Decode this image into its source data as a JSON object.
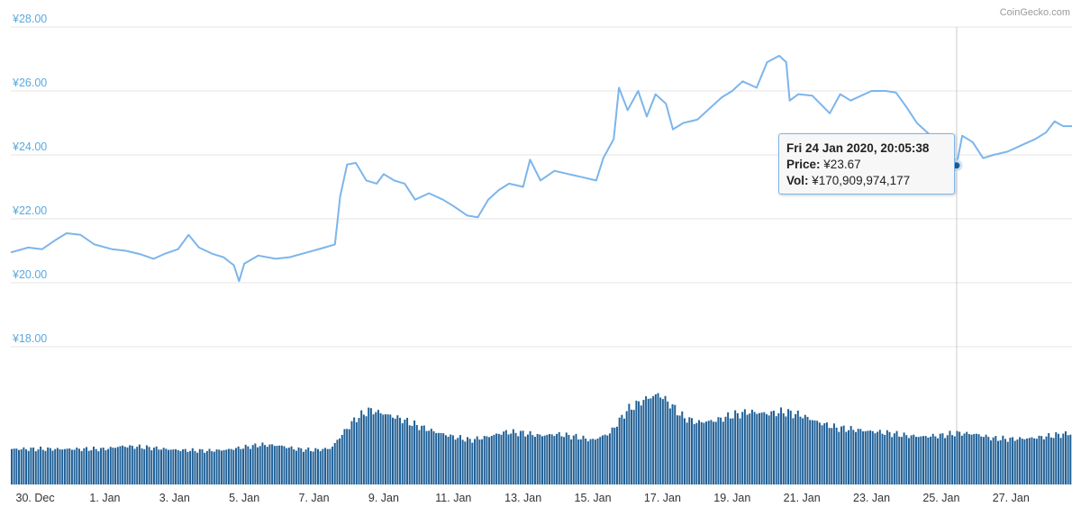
{
  "credit": "CoinGecko.com",
  "colors": {
    "line": "#7cb5ec",
    "bar": "#1e5f96",
    "axis_label": "#5aa9dd",
    "grid": "#e6e6e6",
    "crosshair": "#cccccc",
    "marker": "#1e5f96"
  },
  "tooltip": {
    "date": "Fri 24 Jan 2020, 20:05:38",
    "price_label": "Price:",
    "price_value": "¥23.67",
    "vol_label": "Vol:",
    "vol_value": "¥170,909,974,177"
  },
  "chart_data": {
    "type": "line",
    "title": "",
    "currency": "¥",
    "y_ticks": [
      "¥28.00",
      "¥26.00",
      "¥24.00",
      "¥22.00",
      "¥20.00",
      "¥18.00"
    ],
    "ylim": [
      18,
      28
    ],
    "x_ticks": [
      "30. Dec",
      "1. Jan",
      "3. Jan",
      "5. Jan",
      "7. Jan",
      "9. Jan",
      "11. Jan",
      "13. Jan",
      "15. Jan",
      "17. Jan",
      "19. Jan",
      "21. Jan",
      "23. Jan",
      "25. Jan",
      "27. Jan"
    ],
    "xlim_days": [
      -2.7,
      27.75
    ],
    "price_series": [
      [
        -2.7,
        20.95
      ],
      [
        -2.2,
        21.1
      ],
      [
        -1.8,
        21.05
      ],
      [
        -1.4,
        21.35
      ],
      [
        -1.1,
        21.55
      ],
      [
        -0.7,
        21.5
      ],
      [
        -0.3,
        21.2
      ],
      [
        0.2,
        21.05
      ],
      [
        0.6,
        21.0
      ],
      [
        1.0,
        20.9
      ],
      [
        1.4,
        20.75
      ],
      [
        1.7,
        20.9
      ],
      [
        2.1,
        21.05
      ],
      [
        2.4,
        21.5
      ],
      [
        2.7,
        21.1
      ],
      [
        3.1,
        20.9
      ],
      [
        3.4,
        20.8
      ],
      [
        3.7,
        20.55
      ],
      [
        3.85,
        20.05
      ],
      [
        4.0,
        20.6
      ],
      [
        4.4,
        20.85
      ],
      [
        4.9,
        20.75
      ],
      [
        5.3,
        20.8
      ],
      [
        5.8,
        20.95
      ],
      [
        6.3,
        21.1
      ],
      [
        6.6,
        21.2
      ],
      [
        6.75,
        22.7
      ],
      [
        6.95,
        23.7
      ],
      [
        7.2,
        23.75
      ],
      [
        7.5,
        23.2
      ],
      [
        7.8,
        23.1
      ],
      [
        8.0,
        23.4
      ],
      [
        8.3,
        23.2
      ],
      [
        8.6,
        23.1
      ],
      [
        8.9,
        22.6
      ],
      [
        9.3,
        22.8
      ],
      [
        9.7,
        22.6
      ],
      [
        10.0,
        22.4
      ],
      [
        10.4,
        22.1
      ],
      [
        10.7,
        22.05
      ],
      [
        11.0,
        22.6
      ],
      [
        11.3,
        22.9
      ],
      [
        11.6,
        23.1
      ],
      [
        12.0,
        23.0
      ],
      [
        12.2,
        23.85
      ],
      [
        12.5,
        23.2
      ],
      [
        12.9,
        23.5
      ],
      [
        13.3,
        23.4
      ],
      [
        13.7,
        23.3
      ],
      [
        14.1,
        23.2
      ],
      [
        14.3,
        23.9
      ],
      [
        14.6,
        24.5
      ],
      [
        14.75,
        26.1
      ],
      [
        15.0,
        25.4
      ],
      [
        15.3,
        26.0
      ],
      [
        15.55,
        25.2
      ],
      [
        15.8,
        25.9
      ],
      [
        16.1,
        25.6
      ],
      [
        16.3,
        24.8
      ],
      [
        16.6,
        25.0
      ],
      [
        17.0,
        25.1
      ],
      [
        17.3,
        25.4
      ],
      [
        17.7,
        25.8
      ],
      [
        18.0,
        26.0
      ],
      [
        18.3,
        26.3
      ],
      [
        18.7,
        26.1
      ],
      [
        19.0,
        26.9
      ],
      [
        19.35,
        27.1
      ],
      [
        19.55,
        26.9
      ],
      [
        19.65,
        25.7
      ],
      [
        19.9,
        25.9
      ],
      [
        20.3,
        25.85
      ],
      [
        20.8,
        25.3
      ],
      [
        21.1,
        25.9
      ],
      [
        21.4,
        25.7
      ],
      [
        21.7,
        25.85
      ],
      [
        22.0,
        26.0
      ],
      [
        22.4,
        26.0
      ],
      [
        22.7,
        25.95
      ],
      [
        23.0,
        25.5
      ],
      [
        23.3,
        25.0
      ],
      [
        23.6,
        24.7
      ],
      [
        23.9,
        24.4
      ],
      [
        24.2,
        24.2
      ],
      [
        24.35,
        23.95
      ],
      [
        24.44,
        23.67
      ],
      [
        24.6,
        24.6
      ],
      [
        24.9,
        24.4
      ],
      [
        25.2,
        23.9
      ],
      [
        25.5,
        24.0
      ],
      [
        25.9,
        24.1
      ],
      [
        26.3,
        24.3
      ],
      [
        26.7,
        24.5
      ],
      [
        27.0,
        24.7
      ],
      [
        27.25,
        25.05
      ],
      [
        27.5,
        24.9
      ],
      [
        27.75,
        24.9
      ]
    ],
    "highlight_point": {
      "day": 24.44,
      "price": 23.67
    },
    "volume_series": [
      [
        -2.7,
        1.0
      ],
      [
        0.0,
        1.0
      ],
      [
        0.5,
        1.08
      ],
      [
        1.0,
        1.06
      ],
      [
        1.5,
        1.02
      ],
      [
        2.0,
        0.98
      ],
      [
        2.5,
        0.96
      ],
      [
        3.0,
        0.95
      ],
      [
        3.5,
        0.98
      ],
      [
        4.0,
        1.05
      ],
      [
        4.5,
        1.12
      ],
      [
        5.0,
        1.1
      ],
      [
        5.5,
        1.0
      ],
      [
        6.0,
        0.97
      ],
      [
        6.5,
        1.02
      ],
      [
        6.8,
        1.4
      ],
      [
        7.2,
        1.85
      ],
      [
        7.6,
        2.1
      ],
      [
        8.0,
        2.0
      ],
      [
        8.5,
        1.85
      ],
      [
        9.0,
        1.65
      ],
      [
        9.5,
        1.48
      ],
      [
        10.0,
        1.35
      ],
      [
        10.5,
        1.25
      ],
      [
        11.0,
        1.35
      ],
      [
        11.5,
        1.48
      ],
      [
        12.0,
        1.45
      ],
      [
        12.5,
        1.38
      ],
      [
        13.0,
        1.42
      ],
      [
        13.5,
        1.35
      ],
      [
        14.0,
        1.25
      ],
      [
        14.5,
        1.45
      ],
      [
        15.0,
        2.1
      ],
      [
        15.5,
        2.4
      ],
      [
        15.9,
        2.55
      ],
      [
        16.2,
        2.3
      ],
      [
        16.6,
        1.9
      ],
      [
        17.0,
        1.75
      ],
      [
        17.5,
        1.8
      ],
      [
        18.0,
        1.95
      ],
      [
        18.5,
        2.05
      ],
      [
        19.0,
        2.0
      ],
      [
        19.5,
        2.05
      ],
      [
        20.0,
        1.95
      ],
      [
        20.5,
        1.75
      ],
      [
        21.0,
        1.6
      ],
      [
        21.5,
        1.55
      ],
      [
        22.0,
        1.5
      ],
      [
        22.5,
        1.45
      ],
      [
        23.0,
        1.38
      ],
      [
        23.5,
        1.35
      ],
      [
        24.0,
        1.38
      ],
      [
        24.5,
        1.45
      ],
      [
        25.0,
        1.42
      ],
      [
        25.5,
        1.3
      ],
      [
        26.0,
        1.28
      ],
      [
        26.5,
        1.3
      ],
      [
        27.0,
        1.35
      ],
      [
        27.75,
        1.45
      ]
    ],
    "volume_range": [
      0,
      3.2
    ]
  }
}
